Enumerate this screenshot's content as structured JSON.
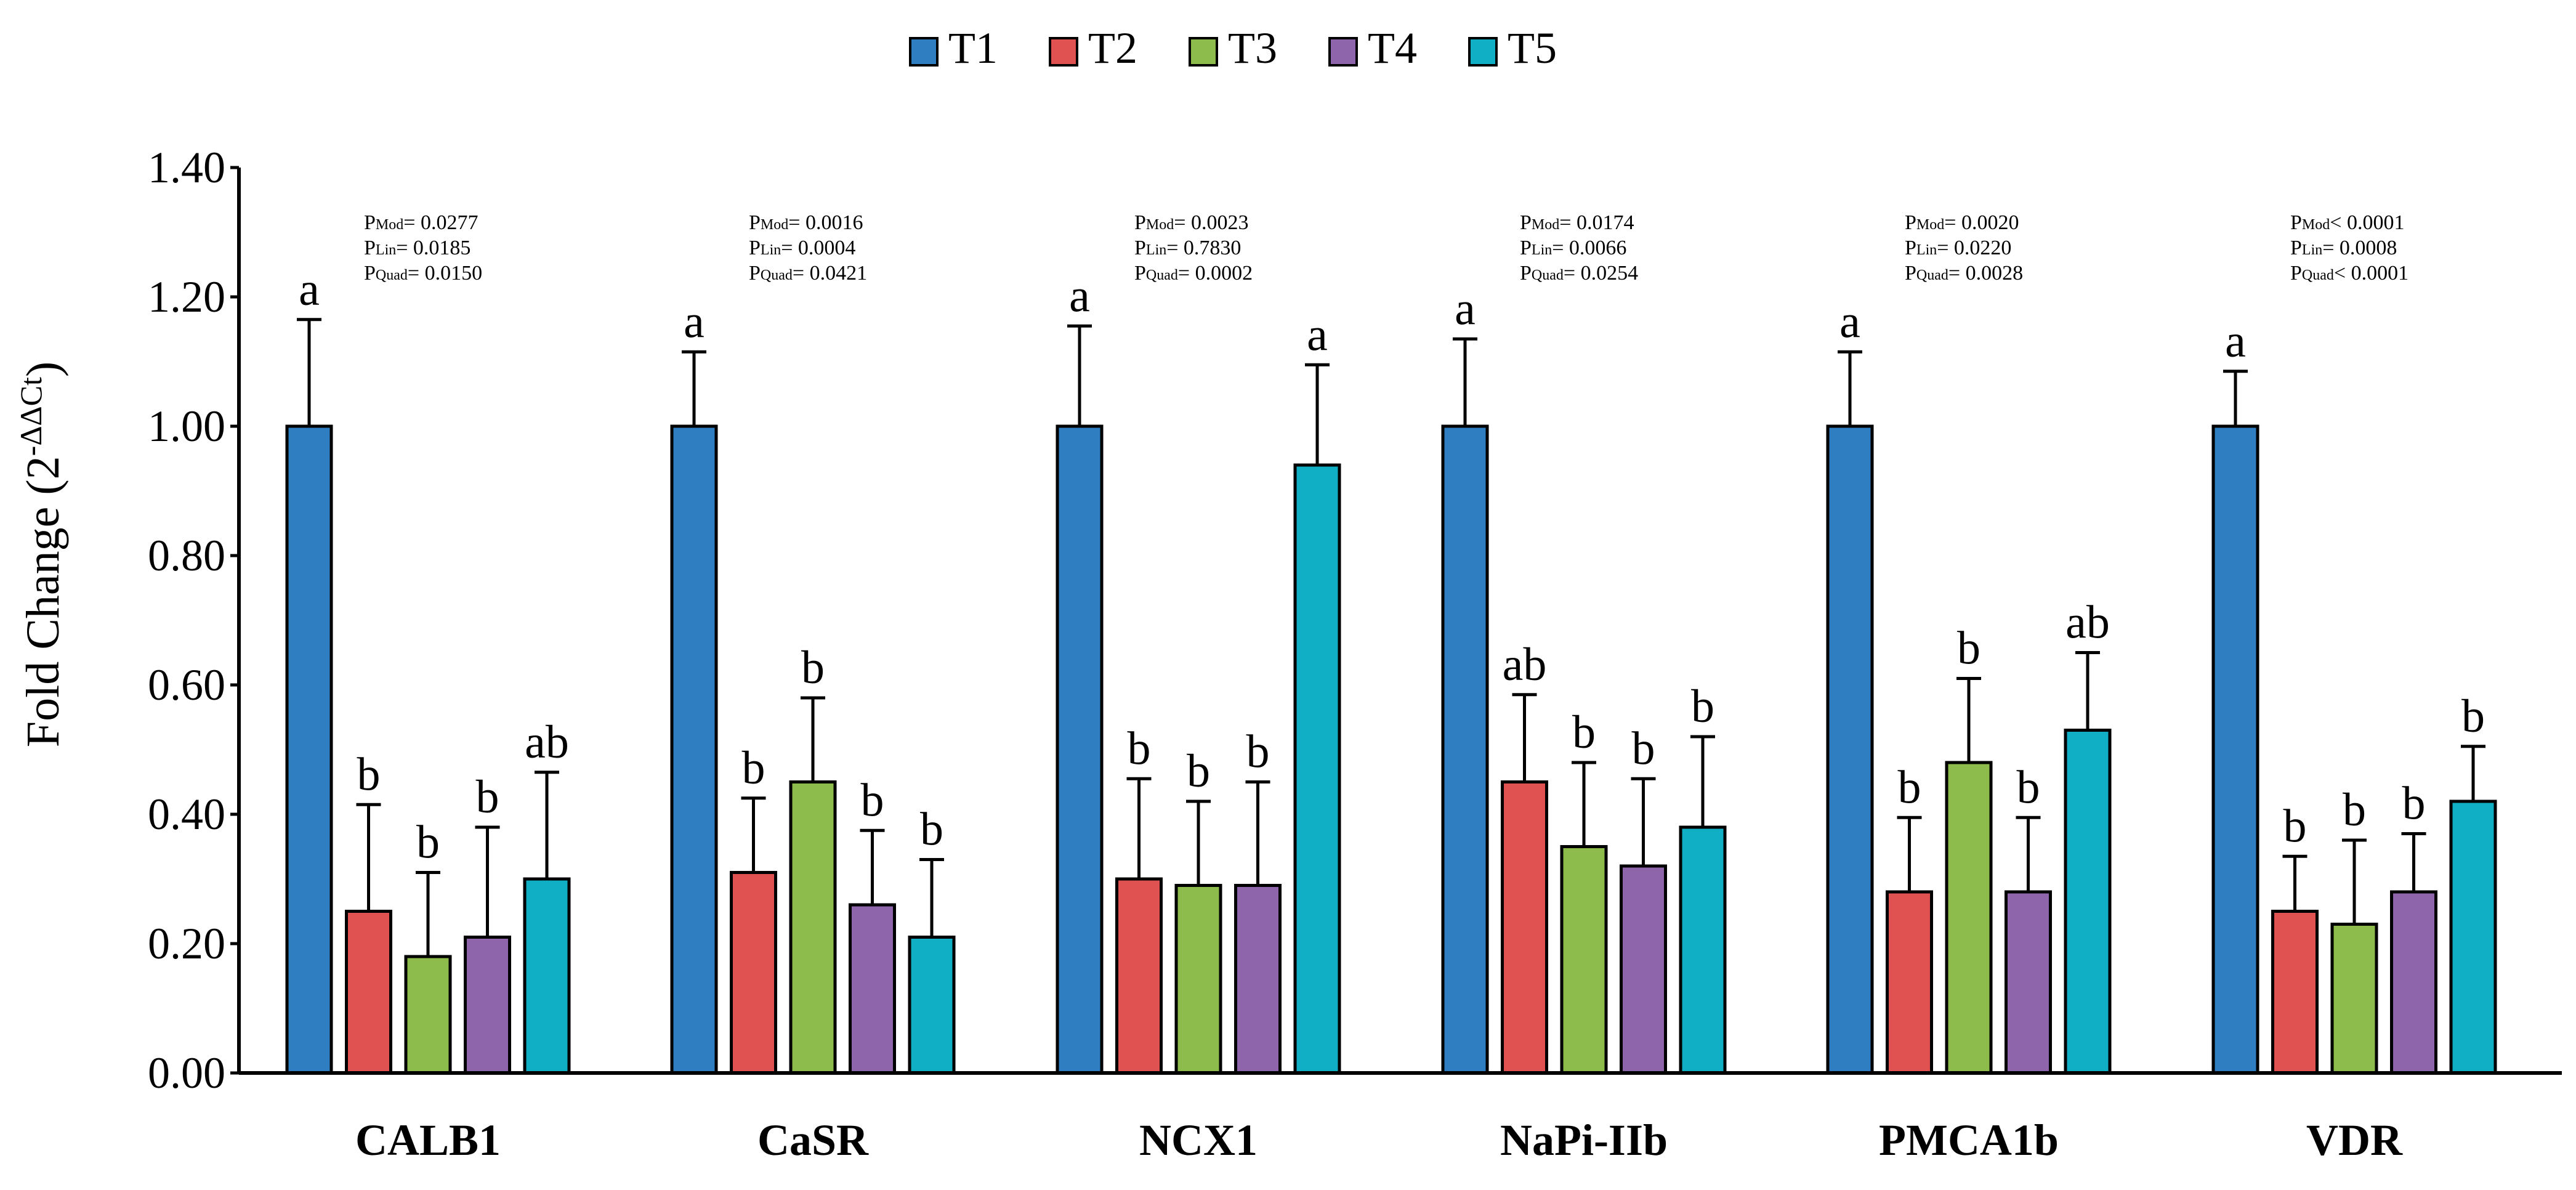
{
  "chart_data": {
    "type": "bar",
    "ylabel": "Fold Change (2",
    "ylabel_sup": "-ΔΔCt",
    "ylabel_close": ")",
    "ylim": [
      0,
      1.4
    ],
    "yticks": [
      0,
      0.2,
      0.4,
      0.6,
      0.8,
      1.0,
      1.2,
      1.4
    ],
    "ytick_labels": [
      "0.00",
      "0.20",
      "0.40",
      "0.60",
      "0.80",
      "1.00",
      "1.20",
      "1.40"
    ],
    "categories": [
      "CALB1",
      "CaSR",
      "NCX1",
      "NaPi-IIb",
      "PMCA1b",
      "VDR"
    ],
    "series": [
      {
        "name": "T1",
        "color": "#2E7EC1",
        "values": [
          1.0,
          1.0,
          1.0,
          1.0,
          1.0,
          1.0
        ],
        "errors": [
          0.165,
          0.115,
          0.155,
          0.135,
          0.115,
          0.085
        ],
        "letters": [
          "a",
          "a",
          "a",
          "a",
          "a",
          "a"
        ]
      },
      {
        "name": "T2",
        "color": "#E05252",
        "values": [
          0.25,
          0.31,
          0.3,
          0.45,
          0.28,
          0.25
        ],
        "errors": [
          0.165,
          0.115,
          0.155,
          0.135,
          0.115,
          0.085
        ],
        "letters": [
          "b",
          "b",
          "b",
          "ab",
          "b",
          "b"
        ]
      },
      {
        "name": "T3",
        "color": "#8DBB4C",
        "values": [
          0.18,
          0.45,
          0.29,
          0.35,
          0.48,
          0.23
        ],
        "errors": [
          0.13,
          0.13,
          0.13,
          0.13,
          0.13,
          0.13
        ],
        "letters": [
          "b",
          "b",
          "b",
          "b",
          "b",
          "b"
        ]
      },
      {
        "name": "T4",
        "color": "#8E65AA",
        "values": [
          0.21,
          0.26,
          0.29,
          0.32,
          0.28,
          0.28
        ],
        "errors": [
          0.17,
          0.115,
          0.16,
          0.135,
          0.115,
          0.09
        ],
        "letters": [
          "b",
          "b",
          "b",
          "b",
          "b",
          "b"
        ]
      },
      {
        "name": "T5",
        "color": "#10AFC6",
        "values": [
          0.3,
          0.21,
          0.94,
          0.38,
          0.53,
          0.42
        ],
        "errors": [
          0.165,
          0.12,
          0.155,
          0.14,
          0.12,
          0.085
        ],
        "letters": [
          "ab",
          "b",
          "a",
          "b",
          "ab",
          "b"
        ]
      }
    ],
    "pvalues": [
      [
        [
          "P",
          "Mod",
          "= 0.0277"
        ],
        [
          "P",
          "Lin",
          "= 0.0185"
        ],
        [
          "P",
          "Quad",
          "= 0.0150"
        ]
      ],
      [
        [
          "P",
          "Mod",
          "= 0.0016"
        ],
        [
          "P",
          "Lin",
          "= 0.0004"
        ],
        [
          "P",
          "Quad",
          "= 0.0421"
        ]
      ],
      [
        [
          "P",
          "Mod",
          "= 0.0023"
        ],
        [
          "P",
          "Lin",
          "= 0.7830"
        ],
        [
          "P",
          "Quad",
          "= 0.0002"
        ]
      ],
      [
        [
          "P",
          "Mod",
          "= 0.0174"
        ],
        [
          "P",
          "Lin",
          "= 0.0066"
        ],
        [
          "P",
          "Quad",
          "= 0.0254"
        ]
      ],
      [
        [
          "P",
          "Mod",
          "= 0.0020"
        ],
        [
          "P",
          "Lin",
          "= 0.0220"
        ],
        [
          "P",
          "Quad",
          "= 0.0028"
        ]
      ],
      [
        [
          "P",
          "Mod",
          "< 0.0001"
        ],
        [
          "P",
          "Lin",
          "= 0.0008"
        ],
        [
          "P",
          "Quad",
          "< 0.0001"
        ]
      ]
    ],
    "legend_position": "top-center",
    "grid": false
  }
}
